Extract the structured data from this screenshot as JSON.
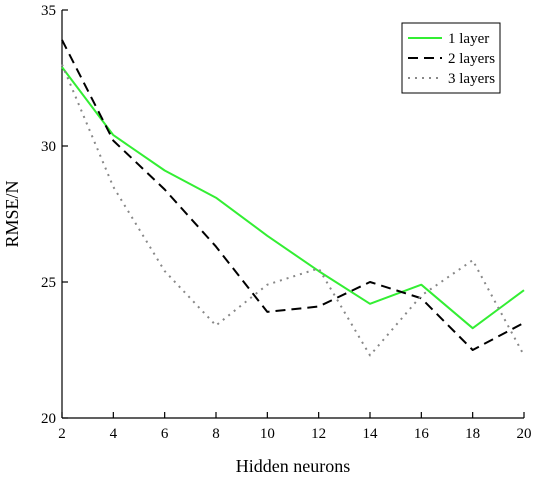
{
  "chart_data": {
    "type": "line",
    "title": "",
    "xlabel": "Hidden neurons",
    "ylabel": "RMSE/N",
    "x": [
      2,
      4,
      6,
      8,
      10,
      12,
      14,
      16,
      18,
      20
    ],
    "xlim": [
      2,
      20
    ],
    "ylim": [
      20,
      35
    ],
    "xticks": [
      2,
      4,
      6,
      8,
      10,
      12,
      14,
      16,
      18,
      20
    ],
    "yticks": [
      20,
      25,
      30,
      35
    ],
    "grid": false,
    "legend_position": "top-right",
    "series": [
      {
        "name": "1 layer",
        "color": "#33ee33",
        "style": "solid",
        "values": [
          32.9,
          30.4,
          29.1,
          28.1,
          26.7,
          25.4,
          24.2,
          24.9,
          23.3,
          24.7
        ]
      },
      {
        "name": "2 layers",
        "color": "#000000",
        "style": "dashed",
        "values": [
          33.9,
          30.2,
          28.4,
          26.3,
          23.9,
          24.1,
          25.0,
          24.4,
          22.5,
          23.5
        ]
      },
      {
        "name": "3 layers",
        "color": "#888888",
        "style": "dotted",
        "values": [
          33.0,
          28.5,
          25.4,
          23.4,
          24.9,
          25.5,
          22.3,
          24.5,
          25.8,
          22.3
        ]
      }
    ]
  }
}
